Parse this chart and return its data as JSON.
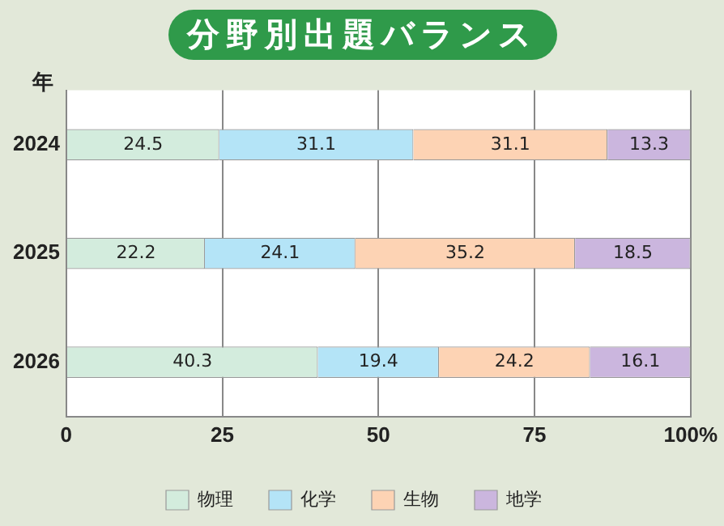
{
  "chart_data": {
    "type": "bar",
    "orientation": "horizontal",
    "stacked": true,
    "title": "分野別出題バランス",
    "ylabel": "年",
    "categories": [
      "2024",
      "2025",
      "2026"
    ],
    "series": [
      {
        "name": "物理",
        "color": "#d3ecdd",
        "values": [
          24.5,
          22.2,
          40.3
        ]
      },
      {
        "name": "化学",
        "color": "#b4e4f7",
        "values": [
          31.1,
          24.1,
          19.4
        ]
      },
      {
        "name": "生物",
        "color": "#fdd3b4",
        "values": [
          31.1,
          35.2,
          24.2
        ]
      },
      {
        "name": "地学",
        "color": "#cbb6de",
        "values": [
          13.3,
          18.5,
          16.1
        ]
      }
    ],
    "xlim": [
      0,
      100
    ],
    "xticks": [
      0,
      25,
      50,
      75,
      {
        "value": 100,
        "label": "100%"
      }
    ],
    "grid": "x",
    "legend": "bottom",
    "data_labels": true
  }
}
